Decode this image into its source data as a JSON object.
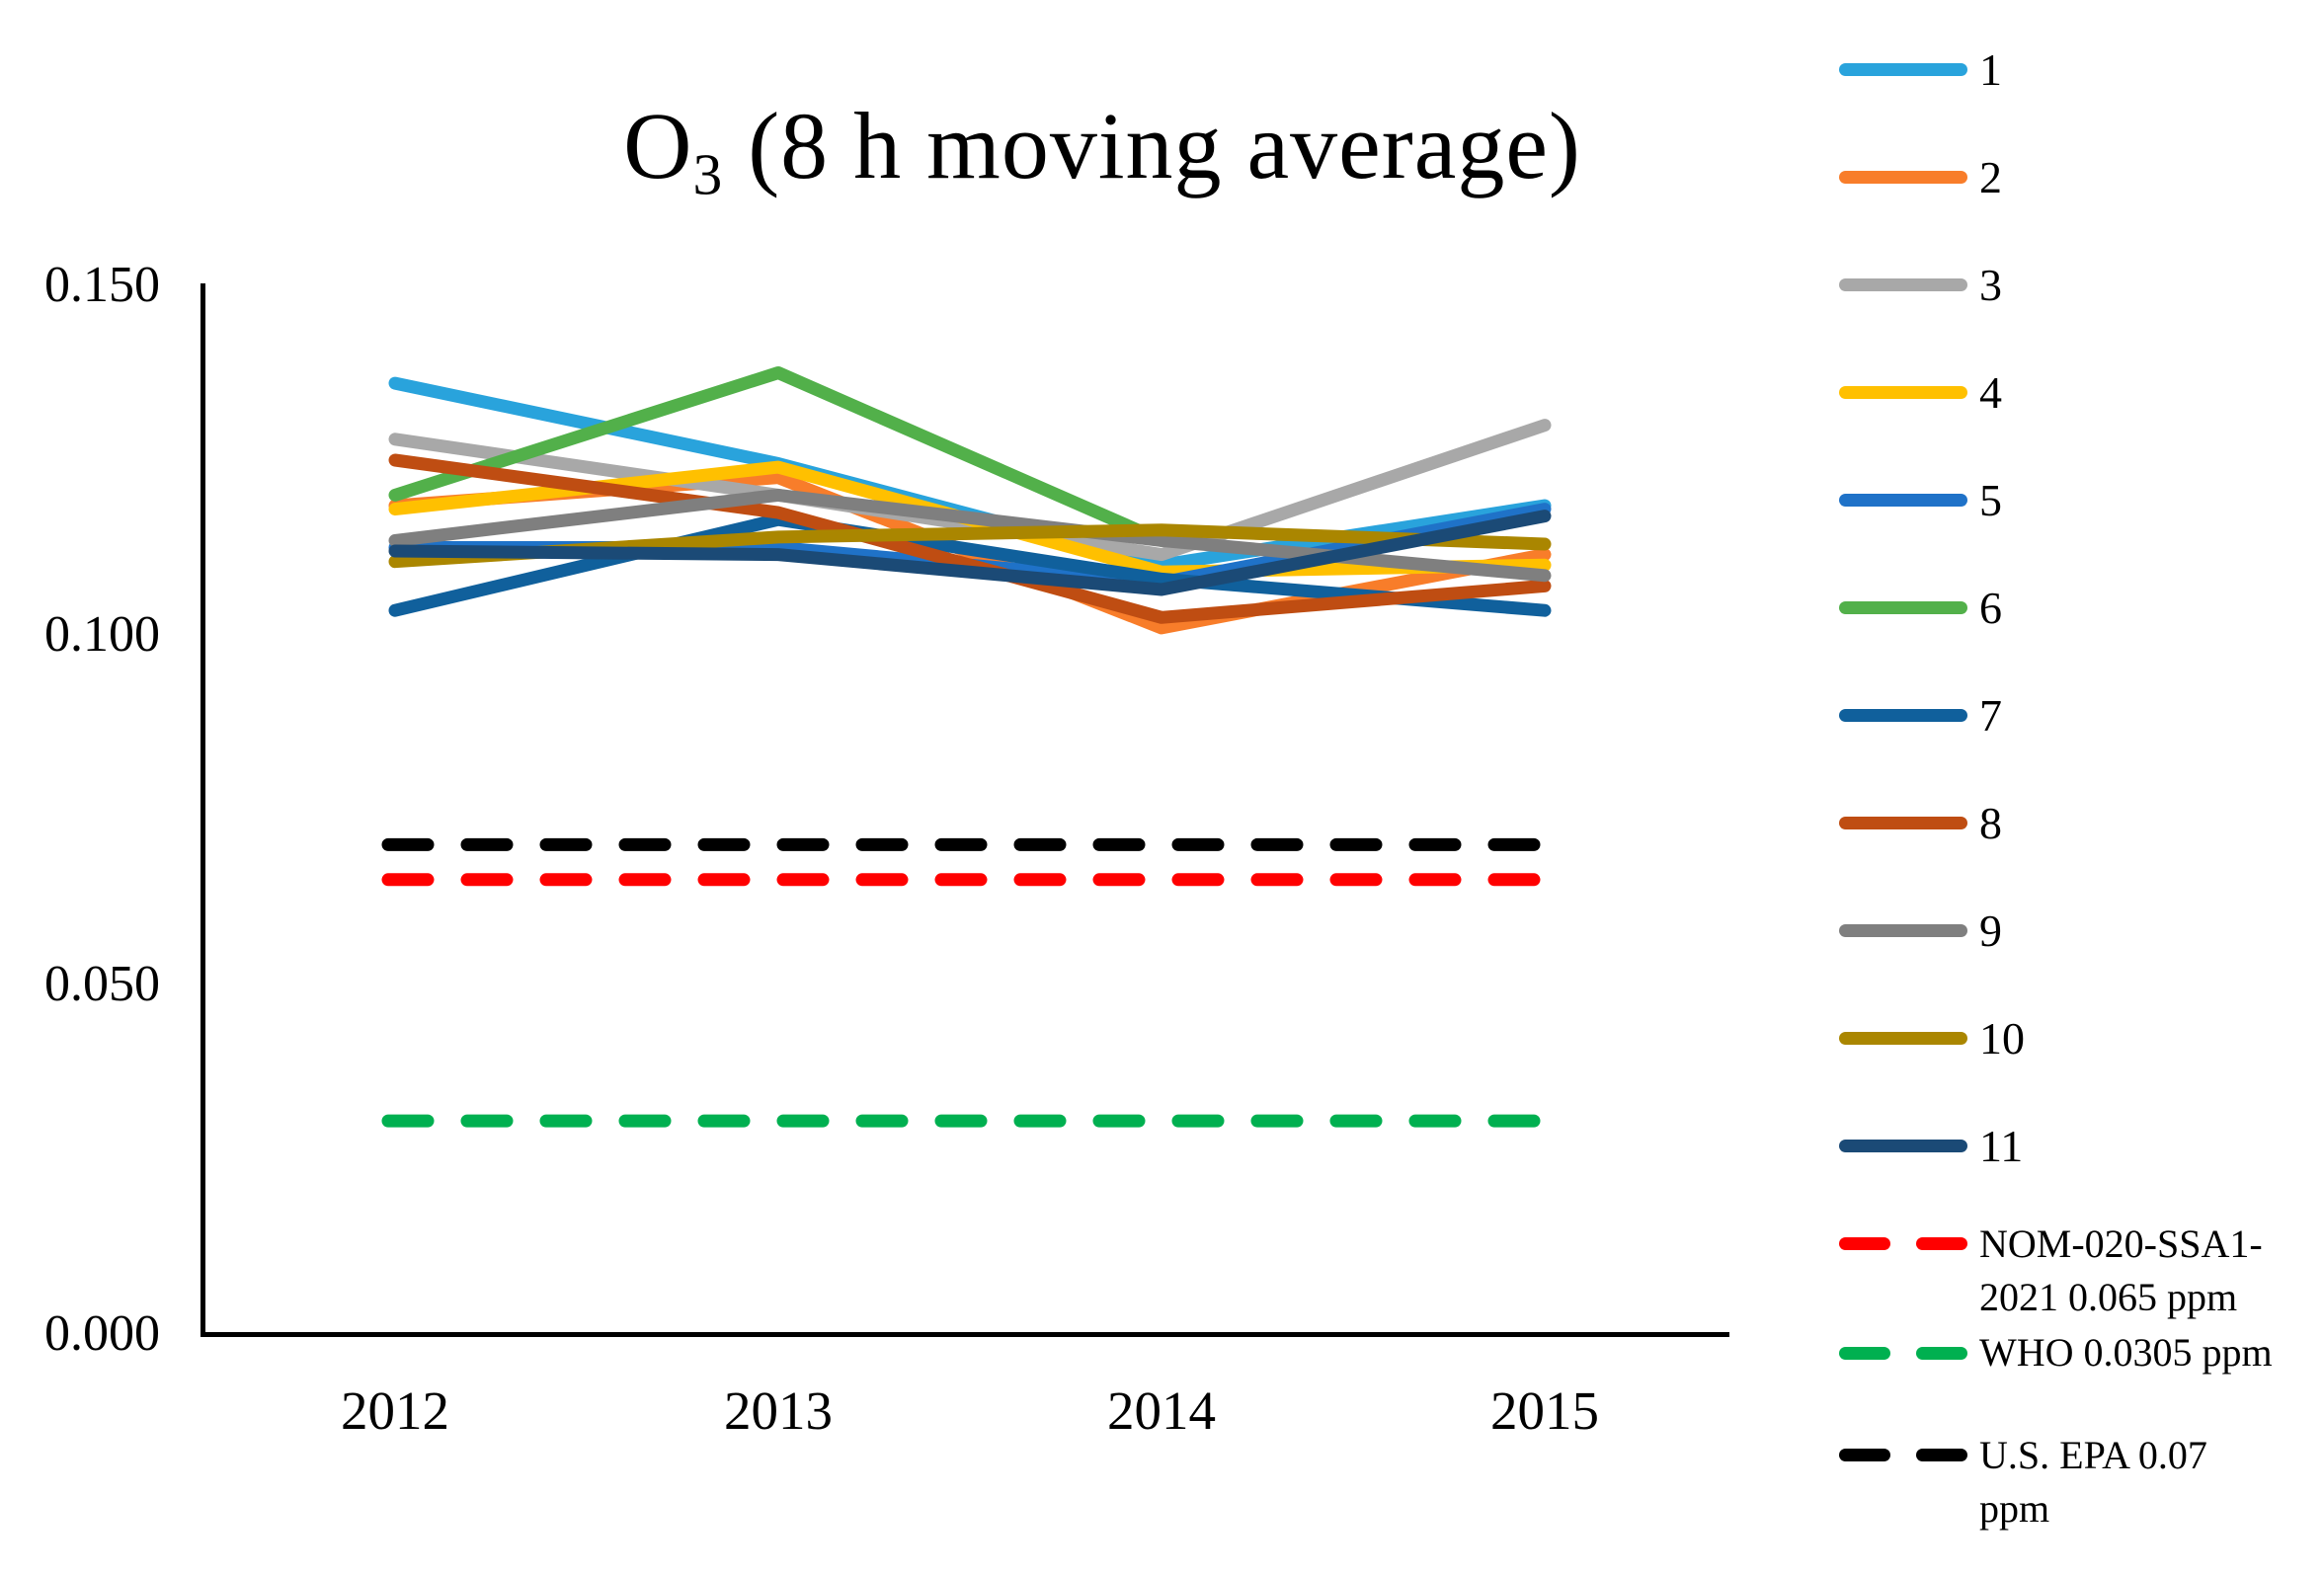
{
  "title": {
    "main": "O",
    "sub": "3",
    "rest": " (8 h moving average)"
  },
  "chart_data": {
    "type": "line",
    "title": "O3 (8 h moving average)",
    "x": [
      "2012",
      "2013",
      "2014",
      "2015"
    ],
    "xlabel": "",
    "ylabel": "",
    "ylim": [
      0,
      0.15
    ],
    "grid": false,
    "legend_position": "right",
    "yticks": [
      {
        "label": "0.150",
        "value": 0.15
      },
      {
        "label": "0.100",
        "value": 0.1
      },
      {
        "label": "0.050",
        "value": 0.05
      },
      {
        "label": "0.000",
        "value": 0.0
      }
    ],
    "series": [
      {
        "name": "1",
        "color": "#29A3DC",
        "values": [
          0.136,
          0.1245,
          0.11,
          0.1185
        ]
      },
      {
        "name": "2",
        "color": "#F87D2A",
        "values": [
          0.1185,
          0.1225,
          0.101,
          0.1115
        ]
      },
      {
        "name": "3",
        "color": "#A8A8A8",
        "values": [
          0.128,
          0.12,
          0.1115,
          0.13
        ]
      },
      {
        "name": "4",
        "color": "#FFC000",
        "values": [
          0.118,
          0.124,
          0.109,
          0.11
        ]
      },
      {
        "name": "5",
        "color": "#1F72C8",
        "values": [
          0.1125,
          0.1125,
          0.1075,
          0.118
        ]
      },
      {
        "name": "6",
        "color": "#52B04A",
        "values": [
          0.12,
          0.1375,
          0.1135,
          null
        ]
      },
      {
        "name": "7",
        "color": "#10609C",
        "values": [
          0.1035,
          0.1165,
          0.108,
          0.1035
        ]
      },
      {
        "name": "8",
        "color": "#BF4D12",
        "values": [
          0.125,
          0.1175,
          0.1025,
          0.107
        ]
      },
      {
        "name": "9",
        "color": "#7F7F7F",
        "values": [
          0.1135,
          0.12,
          0.1135,
          0.1085
        ]
      },
      {
        "name": "10",
        "color": "#AA8600",
        "values": [
          0.1105,
          0.114,
          0.115,
          0.113
        ]
      },
      {
        "name": "11",
        "color": "#1B4A76",
        "values": [
          0.112,
          0.1115,
          0.1065,
          0.117
        ]
      }
    ],
    "reference_lines": [
      {
        "label": "NOM-020-SSA1-2021 0.065 ppm",
        "value": 0.065,
        "color": "#FF0000",
        "style": "dashed"
      },
      {
        "label": "WHO 0.0305 ppm",
        "value": 0.0305,
        "color": "#00B050",
        "style": "dashed"
      },
      {
        "label": "U.S. EPA 0.07 ppm",
        "value": 0.07,
        "color": "#000000",
        "style": "dashed"
      }
    ]
  },
  "legend": {
    "items": [
      {
        "label_lines": [
          "1"
        ],
        "color": "#29A3DC",
        "dashed": false
      },
      {
        "label_lines": [
          "2"
        ],
        "color": "#F87D2A",
        "dashed": false
      },
      {
        "label_lines": [
          "3"
        ],
        "color": "#A8A8A8",
        "dashed": false
      },
      {
        "label_lines": [
          "4"
        ],
        "color": "#FFC000",
        "dashed": false
      },
      {
        "label_lines": [
          "5"
        ],
        "color": "#1F72C8",
        "dashed": false
      },
      {
        "label_lines": [
          "6"
        ],
        "color": "#52B04A",
        "dashed": false
      },
      {
        "label_lines": [
          "7"
        ],
        "color": "#10609C",
        "dashed": false
      },
      {
        "label_lines": [
          "8"
        ],
        "color": "#BF4D12",
        "dashed": false
      },
      {
        "label_lines": [
          "9"
        ],
        "color": "#7F7F7F",
        "dashed": false
      },
      {
        "label_lines": [
          "10"
        ],
        "color": "#AA8600",
        "dashed": false
      },
      {
        "label_lines": [
          "11"
        ],
        "color": "#1B4A76",
        "dashed": false
      },
      {
        "label_lines": [
          "NOM-020-SSA1-",
          "2021 0.065 ppm"
        ],
        "color": "#FF0000",
        "dashed": true
      },
      {
        "label_lines": [
          "WHO 0.0305 ppm"
        ],
        "color": "#00B050",
        "dashed": true
      },
      {
        "label_lines": [
          "U.S. EPA 0.07",
          "ppm"
        ],
        "color": "#000000",
        "dashed": true
      }
    ]
  },
  "colors": {
    "axis": "#000000",
    "background": "#FFFFFF"
  }
}
